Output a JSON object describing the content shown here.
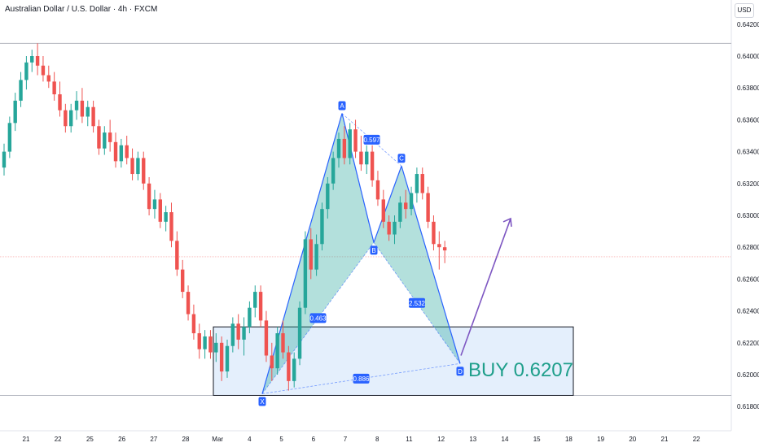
{
  "header": {
    "title": "Australian Dollar / U.S. Dollar · 4h · FXCM",
    "currency_button": "USD"
  },
  "colors": {
    "up": "#26a69a",
    "down": "#ef5350",
    "pattern_fill": "#26a69a",
    "pattern_line": "#2962ff",
    "label_bg": "#2962ff",
    "zone_fill": "#dbe9fb",
    "zone_border": "#131722",
    "arrow": "#7e57c2",
    "buy_text": "#1f9f8b"
  },
  "chart_data": {
    "type": "candlestick",
    "symbol": "AUD/USD",
    "interval": "4h",
    "y_axis": {
      "side": "right",
      "ticks": [
        "0.64200",
        "0.64000",
        "0.63800",
        "0.63600",
        "0.63400",
        "0.63200",
        "0.63000",
        "0.62800",
        "0.62600",
        "0.62400",
        "0.62200",
        "0.62000",
        "0.61800"
      ],
      "range": [
        0.6166,
        0.6426
      ]
    },
    "x_axis": {
      "ticks": [
        "21",
        "22",
        "25",
        "26",
        "27",
        "28",
        "Mar",
        "4",
        "5",
        "6",
        "7",
        "8",
        "11",
        "12",
        "13",
        "14",
        "15",
        "18",
        "19",
        "20",
        "21",
        "22"
      ]
    },
    "grid": false,
    "horizontal_lines": [
      0.6408,
      0.6187
    ],
    "current_price_line": 0.6274,
    "candles": [
      [
        0.633,
        0.6345,
        0.6325,
        0.634
      ],
      [
        0.634,
        0.6362,
        0.6336,
        0.6358
      ],
      [
        0.6358,
        0.6377,
        0.6353,
        0.6372
      ],
      [
        0.6372,
        0.639,
        0.6368,
        0.6385
      ],
      [
        0.6385,
        0.64,
        0.6379,
        0.6396
      ],
      [
        0.6396,
        0.6404,
        0.639,
        0.64
      ],
      [
        0.64,
        0.6408,
        0.6388,
        0.6394
      ],
      [
        0.6394,
        0.64,
        0.6384,
        0.6388
      ],
      [
        0.6388,
        0.6394,
        0.638,
        0.6384
      ],
      [
        0.6384,
        0.639,
        0.6372,
        0.6376
      ],
      [
        0.6376,
        0.6384,
        0.6362,
        0.6366
      ],
      [
        0.6366,
        0.637,
        0.6352,
        0.6356
      ],
      [
        0.6356,
        0.637,
        0.6352,
        0.6366
      ],
      [
        0.6366,
        0.6378,
        0.636,
        0.6372
      ],
      [
        0.6372,
        0.638,
        0.6358,
        0.6362
      ],
      [
        0.6362,
        0.6372,
        0.6356,
        0.6368
      ],
      [
        0.6368,
        0.6372,
        0.6352,
        0.6356
      ],
      [
        0.6356,
        0.636,
        0.6338,
        0.6342
      ],
      [
        0.6342,
        0.6356,
        0.6338,
        0.6352
      ],
      [
        0.6352,
        0.636,
        0.634,
        0.6346
      ],
      [
        0.6346,
        0.6352,
        0.633,
        0.6334
      ],
      [
        0.6334,
        0.6348,
        0.633,
        0.6344
      ],
      [
        0.6344,
        0.635,
        0.6332,
        0.6336
      ],
      [
        0.6336,
        0.6342,
        0.6322,
        0.6326
      ],
      [
        0.6326,
        0.634,
        0.6322,
        0.6336
      ],
      [
        0.6336,
        0.634,
        0.6316,
        0.632
      ],
      [
        0.632,
        0.6324,
        0.63,
        0.6304
      ],
      [
        0.6304,
        0.6316,
        0.6298,
        0.631
      ],
      [
        0.631,
        0.6314,
        0.6292,
        0.6296
      ],
      [
        0.6296,
        0.6306,
        0.629,
        0.6302
      ],
      [
        0.6302,
        0.6308,
        0.628,
        0.6284
      ],
      [
        0.6284,
        0.629,
        0.6262,
        0.6266
      ],
      [
        0.6266,
        0.6272,
        0.6248,
        0.6252
      ],
      [
        0.6252,
        0.6256,
        0.6234,
        0.6238
      ],
      [
        0.6238,
        0.6244,
        0.6222,
        0.6226
      ],
      [
        0.6226,
        0.6232,
        0.621,
        0.6216
      ],
      [
        0.6216,
        0.6228,
        0.621,
        0.6224
      ],
      [
        0.6224,
        0.6228,
        0.621,
        0.6214
      ],
      [
        0.6214,
        0.6226,
        0.6208,
        0.622
      ],
      [
        0.622,
        0.6224,
        0.6196,
        0.6202
      ],
      [
        0.6202,
        0.6222,
        0.6198,
        0.6218
      ],
      [
        0.6218,
        0.6236,
        0.6214,
        0.6232
      ],
      [
        0.6232,
        0.6238,
        0.6216,
        0.6222
      ],
      [
        0.6222,
        0.6236,
        0.6212,
        0.623
      ],
      [
        0.623,
        0.6246,
        0.6226,
        0.6242
      ],
      [
        0.6242,
        0.6256,
        0.6236,
        0.6252
      ],
      [
        0.6252,
        0.6256,
        0.623,
        0.6234
      ],
      [
        0.6234,
        0.624,
        0.6208,
        0.6212
      ],
      [
        0.6212,
        0.622,
        0.6196,
        0.6204
      ],
      [
        0.6204,
        0.623,
        0.62,
        0.6226
      ],
      [
        0.6226,
        0.6234,
        0.621,
        0.6214
      ],
      [
        0.6214,
        0.6218,
        0.619,
        0.6196
      ],
      [
        0.6196,
        0.6214,
        0.6192,
        0.621
      ],
      [
        0.621,
        0.6246,
        0.6206,
        0.6242
      ],
      [
        0.6242,
        0.629,
        0.6238,
        0.6285
      ],
      [
        0.6285,
        0.6292,
        0.626,
        0.6266
      ],
      [
        0.6266,
        0.6288,
        0.6262,
        0.6282
      ],
      [
        0.6282,
        0.6308,
        0.6278,
        0.6304
      ],
      [
        0.6304,
        0.6324,
        0.6298,
        0.632
      ],
      [
        0.632,
        0.634,
        0.6316,
        0.6336
      ],
      [
        0.6336,
        0.6352,
        0.633,
        0.6348
      ],
      [
        0.6348,
        0.6356,
        0.6332,
        0.6336
      ],
      [
        0.6336,
        0.6358,
        0.6332,
        0.6354
      ],
      [
        0.6354,
        0.636,
        0.6336,
        0.634
      ],
      [
        0.634,
        0.635,
        0.6328,
        0.6332
      ],
      [
        0.6332,
        0.6344,
        0.6326,
        0.634
      ],
      [
        0.634,
        0.6344,
        0.6318,
        0.6322
      ],
      [
        0.6322,
        0.6328,
        0.6306,
        0.631
      ],
      [
        0.631,
        0.6316,
        0.6292,
        0.6296
      ],
      [
        0.6296,
        0.63,
        0.6284,
        0.6288
      ],
      [
        0.6288,
        0.63,
        0.6282,
        0.6296
      ],
      [
        0.6296,
        0.6312,
        0.6292,
        0.6308
      ],
      [
        0.6308,
        0.6316,
        0.6298,
        0.6304
      ],
      [
        0.6304,
        0.6318,
        0.63,
        0.6314
      ],
      [
        0.6314,
        0.633,
        0.6308,
        0.6326
      ],
      [
        0.6326,
        0.633,
        0.631,
        0.6314
      ],
      [
        0.6314,
        0.6318,
        0.6292,
        0.6296
      ],
      [
        0.6296,
        0.63,
        0.6278,
        0.6282
      ],
      [
        0.6282,
        0.629,
        0.6266,
        0.628
      ],
      [
        0.628,
        0.6284,
        0.627,
        0.6278
      ]
    ],
    "pattern": {
      "name": "harmonic XABCD",
      "points": [
        {
          "label": "X",
          "x": "4",
          "price": 0.6188
        },
        {
          "label": "A",
          "x": "7",
          "price": 0.6364
        },
        {
          "label": "B",
          "x": "8",
          "price": 0.6283
        },
        {
          "label": "C",
          "x": "11",
          "price": 0.6331
        },
        {
          "label": "D",
          "x": "12",
          "price": 0.6207
        }
      ],
      "ratios": [
        "0.463",
        "0.597",
        "2.532",
        "0.886"
      ]
    },
    "zone": {
      "top": 0.623,
      "bottom": 0.6187
    },
    "arrow": {
      "from_price": 0.6212,
      "to_price": 0.6298
    },
    "annotation": "BUY 0.6207"
  }
}
